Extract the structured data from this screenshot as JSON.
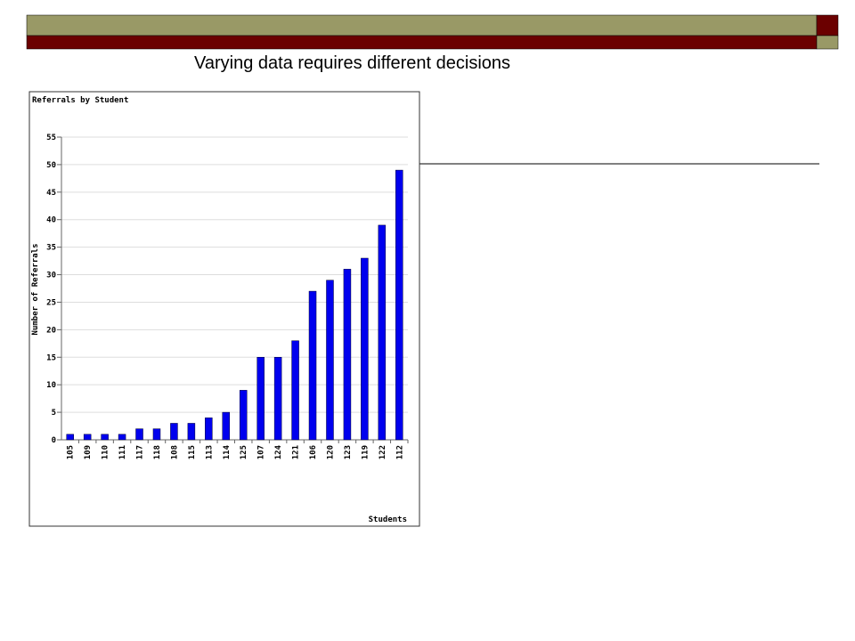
{
  "slide_title": "Varying data requires different decisions",
  "chart_data": {
    "type": "bar",
    "title": "Referrals by Student",
    "x_label": "Students",
    "y_label": "Number of Referrals",
    "categories": [
      "105",
      "109",
      "110",
      "111",
      "117",
      "118",
      "108",
      "115",
      "113",
      "114",
      "125",
      "107",
      "124",
      "121",
      "106",
      "120",
      "123",
      "119",
      "122",
      "112"
    ],
    "values": [
      1,
      1,
      1,
      1,
      2,
      2,
      3,
      3,
      4,
      5,
      9,
      15,
      15,
      18,
      27,
      29,
      31,
      33,
      39,
      49
    ],
    "color": "#0000ee",
    "ylim": [
      0,
      55
    ],
    "yticks": [
      0,
      5,
      10,
      15,
      20,
      25,
      30,
      35,
      40,
      45,
      50,
      55
    ],
    "grid": true
  }
}
